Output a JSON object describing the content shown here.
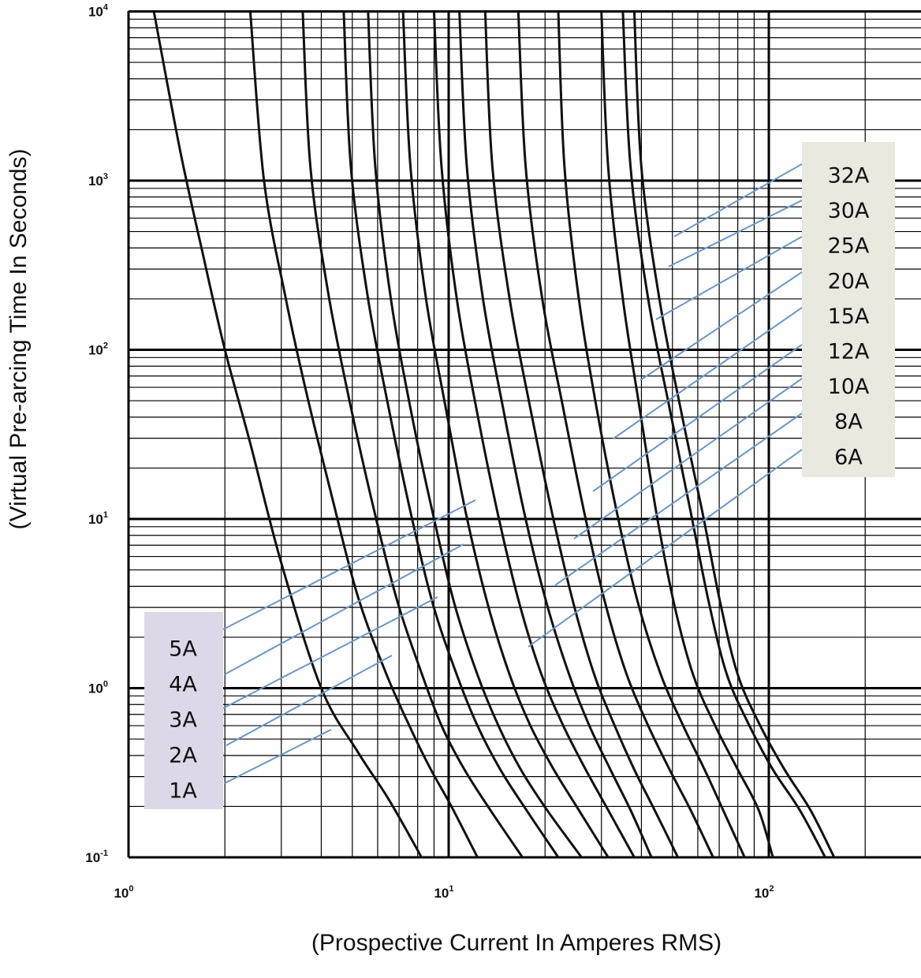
{
  "chart_data": {
    "type": "line",
    "title": "",
    "xlabel": "(Prospective Current In Amperes RMS)",
    "ylabel": "(Virtual Pre-arcing Time In Seconds)",
    "x_scale": "log",
    "y_scale": "log",
    "xlim": [
      1,
      300
    ],
    "ylim": [
      0.1,
      10000
    ],
    "grid": true,
    "x_ticks": [
      {
        "base": "10",
        "exp": "0",
        "value": 1
      },
      {
        "base": "10",
        "exp": "1",
        "value": 10
      },
      {
        "base": "10",
        "exp": "2",
        "value": 100
      }
    ],
    "y_ticks": [
      {
        "base": "10",
        "exp": "-1",
        "value": 0.1
      },
      {
        "base": "10",
        "exp": "0",
        "value": 1
      },
      {
        "base": "10",
        "exp": "1",
        "value": 10
      },
      {
        "base": "10",
        "exp": "2",
        "value": 100
      },
      {
        "base": "10",
        "exp": "3",
        "value": 1000
      },
      {
        "base": "10",
        "exp": "4",
        "value": 10000
      }
    ],
    "legend_groups": [
      {
        "placement": "bottom-left",
        "color": "#ddd8e8",
        "labels": [
          "5A",
          "4A",
          "3A",
          "2A",
          "1A"
        ]
      },
      {
        "placement": "top-right",
        "color": "#e9e9e0",
        "labels": [
          "32A",
          "30A",
          "25A",
          "20A",
          "15A",
          "12A",
          "10A",
          "8A",
          "6A"
        ]
      }
    ],
    "series": [
      {
        "name": "1A",
        "x": [
          1.2,
          1.45,
          1.7,
          2.0,
          2.4,
          3.0,
          4.0,
          5.2,
          6.5,
          8.0,
          8.2
        ],
        "y": [
          10000,
          1500,
          380,
          100,
          28,
          5.5,
          1.0,
          0.42,
          0.22,
          0.11,
          0.1
        ]
      },
      {
        "name": "2A",
        "x": [
          2.4,
          2.65,
          3.1,
          3.6,
          4.3,
          5.2,
          6.4,
          7.7,
          8.8,
          10.2,
          12.3
        ],
        "y": [
          10000,
          1000,
          200,
          55,
          14,
          3.5,
          1.2,
          0.55,
          0.33,
          0.2,
          0.1
        ]
      },
      {
        "name": "3A",
        "x": [
          3.5,
          3.7,
          4.2,
          4.9,
          5.8,
          6.9,
          8.2,
          9.5,
          11.2,
          13.5,
          17.0
        ],
        "y": [
          10000,
          1200,
          220,
          50,
          12,
          3.3,
          1.25,
          0.6,
          0.33,
          0.19,
          0.1
        ]
      },
      {
        "name": "4A",
        "x": [
          4.7,
          4.95,
          5.6,
          6.5,
          7.6,
          8.9,
          10.6,
          12.3,
          14.5,
          17.5,
          22.0
        ],
        "y": [
          10000,
          1200,
          200,
          45,
          11,
          3.2,
          1.2,
          0.6,
          0.33,
          0.19,
          0.1
        ]
      },
      {
        "name": "5A",
        "x": [
          5.6,
          5.9,
          6.6,
          7.6,
          8.9,
          10.4,
          12.3,
          14.3,
          16.8,
          20.3,
          26.0
        ],
        "y": [
          10000,
          1200,
          200,
          45,
          11,
          3.2,
          1.2,
          0.6,
          0.33,
          0.19,
          0.1
        ]
      },
      {
        "name": "6A",
        "x": [
          7.2,
          7.6,
          8.5,
          9.8,
          11.3,
          13.2,
          15.5,
          18.0,
          21.3,
          25.5,
          31.5
        ],
        "y": [
          10000,
          1200,
          200,
          45,
          11,
          3.2,
          1.2,
          0.6,
          0.33,
          0.19,
          0.1
        ]
      },
      {
        "name": "8A",
        "x": [
          9.0,
          9.5,
          10.6,
          12.2,
          14.2,
          16.6,
          19.5,
          22.8,
          26.8,
          31.5,
          38.0
        ],
        "y": [
          10000,
          1200,
          200,
          45,
          11,
          3.2,
          1.2,
          0.6,
          0.33,
          0.19,
          0.1
        ]
      },
      {
        "name": "10A",
        "x": [
          10.8,
          11.4,
          12.8,
          14.8,
          17.2,
          20.2,
          23.8,
          27.5,
          32.0,
          37.0,
          43.0
        ],
        "y": [
          10000,
          1200,
          200,
          45,
          11,
          3.2,
          1.2,
          0.6,
          0.33,
          0.19,
          0.1
        ]
      },
      {
        "name": "12A",
        "x": [
          13.0,
          13.7,
          15.5,
          18.0,
          21.0,
          24.5,
          28.5,
          33.0,
          38.0,
          44.0,
          52.0
        ],
        "y": [
          10000,
          1200,
          200,
          45,
          11,
          3.2,
          1.2,
          0.6,
          0.33,
          0.19,
          0.1
        ]
      },
      {
        "name": "15A",
        "x": [
          16.5,
          17.4,
          19.6,
          22.8,
          26.5,
          30.8,
          36.0,
          42.0,
          49.0,
          57.0,
          67.0
        ],
        "y": [
          10000,
          1200,
          200,
          45,
          11,
          3.2,
          1.2,
          0.6,
          0.33,
          0.19,
          0.1
        ]
      },
      {
        "name": "20A",
        "x": [
          22.0,
          23.0,
          25.5,
          29.0,
          33.5,
          39.0,
          46.0,
          54.0,
          63.0,
          72.0,
          84.0
        ],
        "y": [
          10000,
          1200,
          200,
          45,
          11,
          3.2,
          1.2,
          0.6,
          0.33,
          0.19,
          0.1
        ]
      },
      {
        "name": "25A",
        "x": [
          30.0,
          31.5,
          35.0,
          39.5,
          44.5,
          50.5,
          58.0,
          68.0,
          80.0,
          93.0,
          103.0
        ],
        "y": [
          10000,
          1200,
          200,
          45,
          11,
          3.2,
          1.2,
          0.6,
          0.33,
          0.19,
          0.1
        ]
      },
      {
        "name": "30A",
        "x": [
          35.0,
          37.0,
          42.0,
          49.0,
          57.0,
          65.0,
          74.0,
          87.0,
          103.0,
          125.0,
          150.0
        ],
        "y": [
          10000,
          1200,
          200,
          45,
          11,
          3.2,
          1.2,
          0.6,
          0.33,
          0.19,
          0.1
        ]
      },
      {
        "name": "32A",
        "x": [
          38.0,
          40.0,
          45.5,
          53.0,
          62.0,
          70.5,
          80.0,
          94.0,
          112.0,
          135.0,
          160.0
        ],
        "y": [
          10000,
          1200,
          200,
          45,
          11,
          3.2,
          1.2,
          0.6,
          0.33,
          0.19,
          0.1
        ]
      }
    ]
  }
}
